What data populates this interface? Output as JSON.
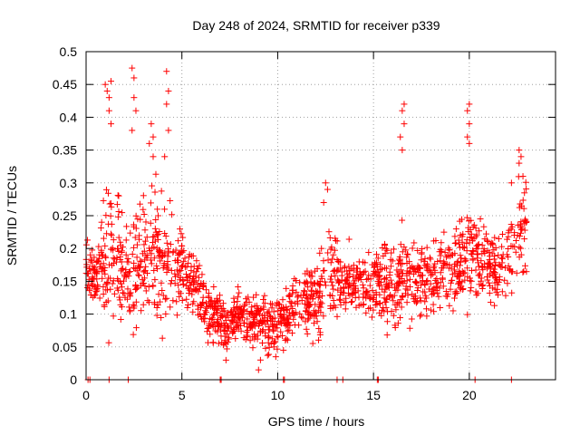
{
  "chart_data": {
    "type": "scatter",
    "title": "Day 248 of 2024, SRMTID for receiver p339",
    "xlabel": "GPS time / hours",
    "ylabel": "SRMTID / TECUs",
    "xlim": [
      0,
      24.5
    ],
    "ylim": [
      0,
      0.5
    ],
    "x_ticks": [
      0,
      5,
      10,
      15,
      20
    ],
    "y_ticks": [
      0,
      0.05,
      0.1,
      0.15,
      0.2,
      0.25,
      0.3,
      0.35,
      0.4,
      0.45,
      0.5
    ],
    "x_tick_labels": [
      "0",
      "5",
      "10",
      "15",
      "20"
    ],
    "y_tick_labels": [
      "0",
      "0.05",
      "0.1",
      "0.15",
      "0.2",
      "0.25",
      "0.3",
      "0.35",
      "0.4",
      "0.45",
      "0.5"
    ],
    "grid": true,
    "marker": "+",
    "color": "#ff0000",
    "series": [
      {
        "name": "SRMTID",
        "profile_x": [
          0,
          0.5,
          1.0,
          1.5,
          2.0,
          2.5,
          3.0,
          3.5,
          4.0,
          4.5,
          5.0,
          5.5,
          6.0,
          6.5,
          7.0,
          7.5,
          8.0,
          8.5,
          9.0,
          9.5,
          10.0,
          10.5,
          11.0,
          11.5,
          12.0,
          12.5,
          13.0,
          13.5,
          14.0,
          14.5,
          15.0,
          15.5,
          16.0,
          16.5,
          17.0,
          17.5,
          18.0,
          18.5,
          19.0,
          19.5,
          20.0,
          20.5,
          21.0,
          21.5,
          22.0,
          22.5,
          23.0
        ],
        "profile_median": [
          0.17,
          0.16,
          0.17,
          0.2,
          0.16,
          0.17,
          0.18,
          0.2,
          0.17,
          0.18,
          0.17,
          0.15,
          0.12,
          0.1,
          0.09,
          0.08,
          0.1,
          0.09,
          0.09,
          0.08,
          0.09,
          0.1,
          0.11,
          0.11,
          0.12,
          0.15,
          0.16,
          0.15,
          0.15,
          0.14,
          0.15,
          0.15,
          0.14,
          0.16,
          0.15,
          0.15,
          0.15,
          0.16,
          0.17,
          0.18,
          0.19,
          0.19,
          0.18,
          0.16,
          0.18,
          0.22,
          0.25
        ],
        "profile_spread": [
          0.04,
          0.05,
          0.1,
          0.12,
          0.07,
          0.09,
          0.09,
          0.1,
          0.1,
          0.07,
          0.06,
          0.05,
          0.05,
          0.04,
          0.04,
          0.04,
          0.04,
          0.04,
          0.04,
          0.04,
          0.04,
          0.04,
          0.04,
          0.05,
          0.06,
          0.08,
          0.06,
          0.05,
          0.05,
          0.05,
          0.05,
          0.06,
          0.08,
          0.08,
          0.07,
          0.06,
          0.05,
          0.06,
          0.06,
          0.06,
          0.08,
          0.06,
          0.05,
          0.05,
          0.06,
          0.07,
          0.08
        ],
        "points": [
          [
            1.0,
            0.45
          ],
          [
            1.1,
            0.44
          ],
          [
            1.2,
            0.43
          ],
          [
            1.3,
            0.455
          ],
          [
            1.2,
            0.41
          ],
          [
            1.3,
            0.39
          ],
          [
            2.4,
            0.475
          ],
          [
            2.5,
            0.46
          ],
          [
            2.5,
            0.43
          ],
          [
            2.6,
            0.41
          ],
          [
            2.4,
            0.38
          ],
          [
            3.4,
            0.39
          ],
          [
            3.5,
            0.37
          ],
          [
            3.3,
            0.36
          ],
          [
            3.5,
            0.34
          ],
          [
            4.2,
            0.47
          ],
          [
            4.3,
            0.44
          ],
          [
            4.2,
            0.42
          ],
          [
            4.3,
            0.38
          ],
          [
            4.1,
            0.34
          ],
          [
            9.9,
            0.035
          ],
          [
            9.8,
            0.05
          ],
          [
            9.0,
            0.015
          ],
          [
            9.1,
            0.03
          ],
          [
            10.3,
            0.045
          ],
          [
            10.4,
            0.06
          ],
          [
            12.5,
            0.3
          ],
          [
            12.6,
            0.29
          ],
          [
            12.4,
            0.27
          ],
          [
            16.6,
            0.42
          ],
          [
            16.5,
            0.41
          ],
          [
            16.6,
            0.39
          ],
          [
            16.4,
            0.37
          ],
          [
            16.5,
            0.35
          ],
          [
            20.0,
            0.42
          ],
          [
            19.9,
            0.41
          ],
          [
            20.0,
            0.39
          ],
          [
            19.9,
            0.37
          ],
          [
            20.0,
            0.36
          ],
          [
            22.6,
            0.35
          ],
          [
            22.7,
            0.34
          ],
          [
            22.6,
            0.33
          ],
          [
            22.8,
            0.31
          ],
          [
            22.2,
            0.3
          ]
        ],
        "near_zero_x": [
          0.1,
          0.2,
          1.2,
          2.2,
          7.0,
          7.05,
          10.3,
          10.35,
          13.1,
          13.4,
          15.2,
          15.25,
          20.3,
          22.2
        ]
      }
    ]
  }
}
